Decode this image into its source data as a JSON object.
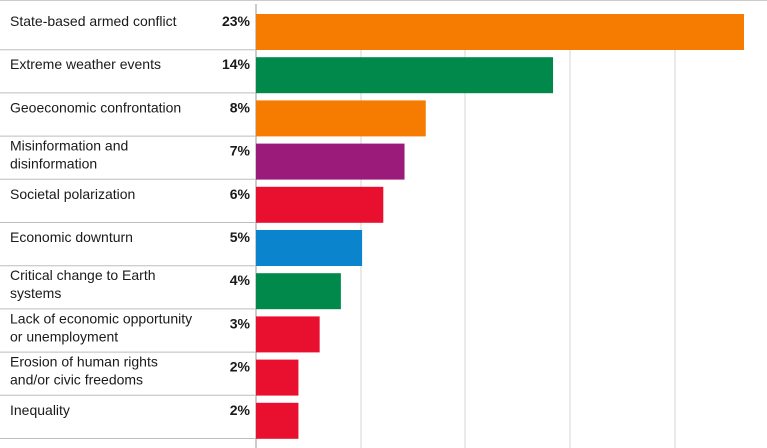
{
  "chart_data": {
    "type": "bar",
    "orientation": "horizontal",
    "categories": [
      [
        "State-based armed conflict"
      ],
      [
        "Extreme weather events"
      ],
      [
        "Geoeconomic confrontation"
      ],
      [
        "Misinformation and",
        "disinformation"
      ],
      [
        "Societal polarization"
      ],
      [
        "Economic downturn"
      ],
      [
        "Critical change to Earth",
        "systems"
      ],
      [
        "Lack of economic opportunity",
        "or unemployment"
      ],
      [
        "Erosion of human rights",
        "and/or civic freedoms"
      ],
      [
        "Inequality"
      ]
    ],
    "values": [
      23,
      14,
      8,
      7,
      6,
      5,
      4,
      3,
      2,
      2
    ],
    "value_labels": [
      "23%",
      "14%",
      "8%",
      "7%",
      "6%",
      "5%",
      "4%",
      "3%",
      "2%",
      "2%"
    ],
    "bar_colors": [
      "#f57c00",
      "#00894a",
      "#f57c00",
      "#9b1b7a",
      "#e8102e",
      "#0a84cc",
      "#00894a",
      "#e8102e",
      "#e8102e",
      "#e8102e"
    ],
    "xlim": [
      0,
      23
    ],
    "grid": true,
    "legend": "none",
    "title": "",
    "xlabel": "",
    "ylabel": ""
  }
}
